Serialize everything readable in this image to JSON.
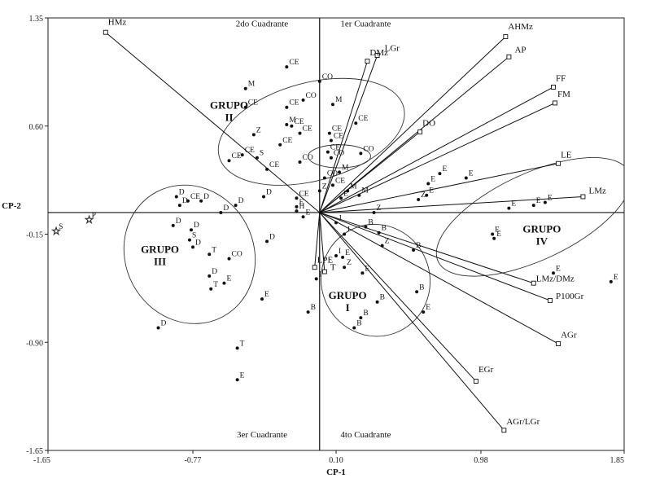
{
  "chart_data": {
    "type": "scatter",
    "subtype": "biplot",
    "title": "",
    "xlabel": "CP-1",
    "ylabel": "CP-2",
    "xlim": [
      -1.65,
      1.85
    ],
    "ylim": [
      -1.65,
      1.35
    ],
    "xticks": [
      -1.65,
      -0.77,
      0.1,
      0.98,
      1.85
    ],
    "xtick_labels": [
      "-1.65",
      "-0.77",
      "0.10",
      "0.98",
      "1.85"
    ],
    "yticks": [
      1.35,
      0.6,
      -0.15,
      -0.9,
      -1.65
    ],
    "ytick_labels": [
      "1.35",
      "0.60",
      "-0.15",
      "-0.90",
      "-1.65"
    ],
    "grid": false,
    "quadrants": [
      {
        "label": "1er Cuadrante",
        "x": 0.28,
        "y": 1.29
      },
      {
        "label": "2do Cuadrante",
        "x": -0.35,
        "y": 1.29
      },
      {
        "label": "3er Cuadrante",
        "x": -0.35,
        "y": -1.56
      },
      {
        "label": "4to Cuadrante",
        "x": 0.28,
        "y": -1.56
      }
    ],
    "groups": [
      {
        "label": "GRUPO II",
        "lines": [
          "GRUPO",
          "II"
        ],
        "x": -0.55,
        "y": 0.72,
        "ellipse": {
          "cx": -0.05,
          "cy": 0.56,
          "rx": 0.58,
          "ry": 0.34,
          "angle": -15
        }
      },
      {
        "label": "GRUPO III",
        "lines": [
          "GRUPO",
          "III"
        ],
        "x": -0.97,
        "y": -0.28,
        "ellipse": {
          "cx": -0.79,
          "cy": -0.29,
          "rx": 0.39,
          "ry": 0.49,
          "angle": -28
        }
      },
      {
        "label": "GRUPO I",
        "lines": [
          "GRUPO",
          "I"
        ],
        "x": 0.17,
        "y": -0.6,
        "ellipse": {
          "cx": 0.34,
          "cy": -0.47,
          "rx": 0.33,
          "ry": 0.39,
          "angle": -20
        }
      },
      {
        "label": "GRUPO IV",
        "lines": [
          "GRUPO",
          "IV"
        ],
        "x": 1.35,
        "y": -0.14,
        "ellipse": {
          "cx": 1.3,
          "cy": -0.03,
          "rx": 0.64,
          "ry": 0.3,
          "angle": -25
        }
      },
      {
        "label": "",
        "lines": [],
        "x": 0,
        "y": 0,
        "ellipse": {
          "cx": 0.12,
          "cy": 0.39,
          "rx": 0.19,
          "ry": 0.08,
          "angle": 0
        }
      }
    ],
    "vectors": [
      {
        "label": "HMz",
        "x": -1.3,
        "y": 1.25,
        "lx": 0,
        "ly": 0.04
      },
      {
        "label": "LGr",
        "x": 0.35,
        "y": 1.09,
        "lx": 0.03,
        "ly": 0.02
      },
      {
        "label": "DMz",
        "x": 0.29,
        "y": 1.05,
        "lx": 0,
        "ly": 0.03
      },
      {
        "label": "AHMz",
        "x": 1.13,
        "y": 1.22,
        "lx": 0,
        "ly": 0.04
      },
      {
        "label": "AP",
        "x": 1.15,
        "y": 1.08,
        "lx": 0.02,
        "ly": 0.02
      },
      {
        "label": "FF",
        "x": 1.42,
        "y": 0.87,
        "lx": 0,
        "ly": 0.03
      },
      {
        "label": "FM",
        "x": 1.43,
        "y": 0.76,
        "lx": 0,
        "ly": 0.03
      },
      {
        "label": "DO",
        "x": 0.61,
        "y": 0.56,
        "lx": 0,
        "ly": 0.03
      },
      {
        "label": "LE",
        "x": 1.45,
        "y": 0.34,
        "lx": 0,
        "ly": 0.03
      },
      {
        "label": "LMz",
        "x": 1.6,
        "y": 0.11,
        "lx": 0.02,
        "ly": 0.01
      },
      {
        "label": "LMz/DMz",
        "x": 1.3,
        "y": -0.49,
        "lx": 0,
        "ly": 0
      },
      {
        "label": "P100Gr",
        "x": 1.4,
        "y": -0.61,
        "lx": 0.02,
        "ly": 0
      },
      {
        "label": "AGr",
        "x": 1.45,
        "y": -0.91,
        "lx": 0,
        "ly": 0.03
      },
      {
        "label": "EGr",
        "x": 0.95,
        "y": -1.17,
        "lx": 0,
        "ly": 0.05
      },
      {
        "label": "AGr/LGr",
        "x": 1.12,
        "y": -1.51,
        "lx": 0,
        "ly": 0.03
      },
      {
        "label": "LPE",
        "x": -0.03,
        "y": -0.38,
        "lx": 0,
        "ly": 0.02
      },
      {
        "label": "T",
        "x": 0.03,
        "y": -0.41,
        "lx": 0.02,
        "ly": 0
      }
    ],
    "points": [
      {
        "label": "S",
        "x": -1.6,
        "y": -0.13
      },
      {
        "label": "P",
        "x": -1.4,
        "y": -0.05
      },
      {
        "label": "M",
        "x": -0.45,
        "y": 0.86
      },
      {
        "label": "CE",
        "x": -0.2,
        "y": 1.01
      },
      {
        "label": "CO",
        "x": 0.0,
        "y": 0.91
      },
      {
        "label": "CO",
        "x": -0.1,
        "y": 0.78
      },
      {
        "label": "CE",
        "x": -0.45,
        "y": 0.73
      },
      {
        "label": "CE",
        "x": -0.2,
        "y": 0.73
      },
      {
        "label": "M",
        "x": 0.08,
        "y": 0.75
      },
      {
        "label": "CE",
        "x": 0.22,
        "y": 0.62
      },
      {
        "label": "M",
        "x": -0.2,
        "y": 0.61
      },
      {
        "label": "CE",
        "x": -0.17,
        "y": 0.6
      },
      {
        "label": "Z",
        "x": -0.4,
        "y": 0.54
      },
      {
        "label": "CE",
        "x": -0.12,
        "y": 0.55
      },
      {
        "label": "CE",
        "x": -0.24,
        "y": 0.47
      },
      {
        "label": "CE",
        "x": 0.06,
        "y": 0.55
      },
      {
        "label": "CE",
        "x": 0.07,
        "y": 0.5
      },
      {
        "label": "CE",
        "x": 0.05,
        "y": 0.42
      },
      {
        "label": "CO",
        "x": 0.07,
        "y": 0.38
      },
      {
        "label": "CE",
        "x": -0.47,
        "y": 0.4
      },
      {
        "label": "S",
        "x": -0.38,
        "y": 0.38
      },
      {
        "label": "CE",
        "x": -0.55,
        "y": 0.36
      },
      {
        "label": "CE",
        "x": -0.32,
        "y": 0.3
      },
      {
        "label": "CO",
        "x": -0.12,
        "y": 0.35
      },
      {
        "label": "CO",
        "x": 0.25,
        "y": 0.41
      },
      {
        "label": "CO",
        "x": 0.03,
        "y": 0.24
      },
      {
        "label": "M",
        "x": 0.12,
        "y": 0.28
      },
      {
        "label": "CE",
        "x": 0.08,
        "y": 0.19
      },
      {
        "label": "Z",
        "x": 0.0,
        "y": 0.15
      },
      {
        "label": "M",
        "x": 0.17,
        "y": 0.15
      },
      {
        "label": "CE",
        "x": -0.14,
        "y": 0.1
      },
      {
        "label": "D",
        "x": -0.87,
        "y": 0.11
      },
      {
        "label": "CE",
        "x": -0.8,
        "y": 0.08
      },
      {
        "label": "D",
        "x": -0.72,
        "y": 0.08
      },
      {
        "label": "D",
        "x": -0.85,
        "y": 0.05
      },
      {
        "label": "D",
        "x": -0.51,
        "y": 0.05
      },
      {
        "label": "D",
        "x": -0.34,
        "y": 0.11
      },
      {
        "label": "D",
        "x": -0.6,
        "y": 0.0
      },
      {
        "label": "E",
        "x": -0.14,
        "y": 0.04
      },
      {
        "label": "H",
        "x": -0.14,
        "y": 0.01
      },
      {
        "label": "E",
        "x": -0.1,
        "y": -0.03
      },
      {
        "label": "D",
        "x": -0.89,
        "y": -0.09
      },
      {
        "label": "D",
        "x": -0.78,
        "y": -0.12
      },
      {
        "label": "S",
        "x": -0.79,
        "y": -0.19
      },
      {
        "label": "D",
        "x": -0.77,
        "y": -0.24
      },
      {
        "label": "D",
        "x": -0.32,
        "y": -0.2
      },
      {
        "label": "T",
        "x": -0.67,
        "y": -0.29
      },
      {
        "label": "CO",
        "x": -0.55,
        "y": -0.32
      },
      {
        "label": "D",
        "x": -0.67,
        "y": -0.44
      },
      {
        "label": "E",
        "x": -0.58,
        "y": -0.49
      },
      {
        "label": "T",
        "x": -0.66,
        "y": -0.53
      },
      {
        "label": "E",
        "x": -0.35,
        "y": -0.6
      },
      {
        "label": "D",
        "x": -0.98,
        "y": -0.8
      },
      {
        "label": "T",
        "x": -0.5,
        "y": -0.94
      },
      {
        "label": "E",
        "x": -0.5,
        "y": -1.16
      },
      {
        "label": "E",
        "x": 0.13,
        "y": 0.1
      },
      {
        "label": "M",
        "x": 0.24,
        "y": 0.12
      },
      {
        "label": "Z",
        "x": 0.33,
        "y": 0.0
      },
      {
        "label": "Z",
        "x": 0.6,
        "y": 0.09
      },
      {
        "label": "E",
        "x": 0.66,
        "y": 0.2
      },
      {
        "label": "E",
        "x": 0.65,
        "y": 0.12
      },
      {
        "label": "E",
        "x": 0.73,
        "y": 0.27
      },
      {
        "label": "E",
        "x": 0.89,
        "y": 0.24
      },
      {
        "label": "E",
        "x": 1.15,
        "y": 0.03
      },
      {
        "label": "E",
        "x": 1.3,
        "y": 0.05
      },
      {
        "label": "E",
        "x": 1.37,
        "y": 0.07
      },
      {
        "label": "E",
        "x": 1.05,
        "y": -0.15
      },
      {
        "label": "E",
        "x": 1.06,
        "y": -0.18
      },
      {
        "label": "E",
        "x": 1.42,
        "y": -0.42
      },
      {
        "label": "E",
        "x": 1.77,
        "y": -0.48
      },
      {
        "label": "J",
        "x": 0.1,
        "y": -0.07
      },
      {
        "label": "B",
        "x": 0.28,
        "y": -0.1
      },
      {
        "label": "B",
        "x": 0.36,
        "y": -0.14
      },
      {
        "label": "J",
        "x": 0.15,
        "y": -0.15
      },
      {
        "label": "Z",
        "x": 0.38,
        "y": -0.23
      },
      {
        "label": "E",
        "x": 0.14,
        "y": -0.31
      },
      {
        "label": "B",
        "x": 0.57,
        "y": -0.26
      },
      {
        "label": "I",
        "x": 0.1,
        "y": -0.3
      },
      {
        "label": "Z",
        "x": 0.15,
        "y": -0.38
      },
      {
        "label": "E",
        "x": 0.26,
        "y": -0.42
      },
      {
        "label": "B",
        "x": 0.59,
        "y": -0.55
      },
      {
        "label": "B",
        "x": 0.35,
        "y": -0.62
      },
      {
        "label": "E",
        "x": 0.63,
        "y": -0.69
      },
      {
        "label": "B",
        "x": 0.25,
        "y": -0.73
      },
      {
        "label": "B",
        "x": 0.21,
        "y": -0.8
      },
      {
        "label": "B",
        "x": -0.07,
        "y": -0.69
      },
      {
        "label": "I",
        "x": -0.02,
        "y": -0.46
      }
    ]
  }
}
